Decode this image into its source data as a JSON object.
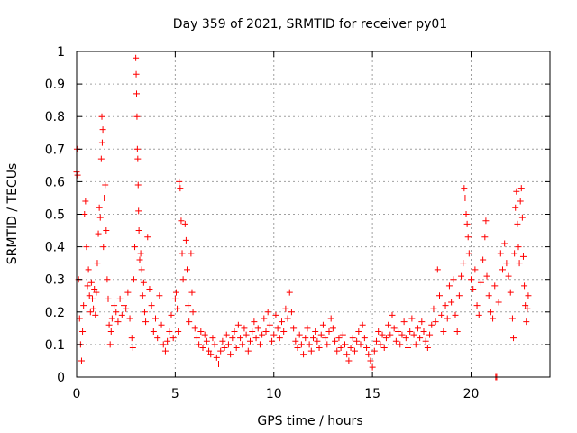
{
  "chart_data": {
    "type": "scatter",
    "title": "Day 359 of 2021, SRMTID for receiver py01",
    "xlabel": "GPS time / hours",
    "ylabel": "SRMTID / TECUs",
    "xlim": [
      0,
      24
    ],
    "ylim": [
      0,
      1
    ],
    "xticks": [
      0,
      5,
      10,
      15,
      20
    ],
    "xtick_labels": [
      "0",
      "5",
      "10",
      "15",
      "20"
    ],
    "yticks": [
      0,
      0.1,
      0.2,
      0.3,
      0.4,
      0.5,
      0.6,
      0.7,
      0.8,
      0.9,
      1
    ],
    "ytick_labels": [
      "0",
      "0.1",
      "0.2",
      "0.3",
      "0.4",
      "0.5",
      "0.6",
      "0.7",
      "0.8",
      "0.9",
      "1"
    ],
    "grid": true,
    "marker": "+",
    "color": "#ff0000",
    "series": [
      {
        "name": "SRMTID",
        "points": [
          [
            0.0,
            0.63
          ],
          [
            0.02,
            0.7
          ],
          [
            0.05,
            0.62
          ],
          [
            0.1,
            0.3
          ],
          [
            0.15,
            0.18
          ],
          [
            0.2,
            0.1
          ],
          [
            0.25,
            0.05
          ],
          [
            0.3,
            0.14
          ],
          [
            0.35,
            0.22
          ],
          [
            0.4,
            0.5
          ],
          [
            0.45,
            0.54
          ],
          [
            0.5,
            0.4
          ],
          [
            0.55,
            0.28
          ],
          [
            0.6,
            0.33
          ],
          [
            0.65,
            0.25
          ],
          [
            0.7,
            0.2
          ],
          [
            0.75,
            0.29
          ],
          [
            0.8,
            0.24
          ],
          [
            0.85,
            0.21
          ],
          [
            0.9,
            0.27
          ],
          [
            0.95,
            0.19
          ],
          [
            1.0,
            0.26
          ],
          [
            1.05,
            0.35
          ],
          [
            1.1,
            0.44
          ],
          [
            1.15,
            0.52
          ],
          [
            1.2,
            0.49
          ],
          [
            1.25,
            0.67
          ],
          [
            1.28,
            0.8
          ],
          [
            1.3,
            0.72
          ],
          [
            1.33,
            0.76
          ],
          [
            1.36,
            0.4
          ],
          [
            1.4,
            0.55
          ],
          [
            1.45,
            0.59
          ],
          [
            1.5,
            0.45
          ],
          [
            1.55,
            0.3
          ],
          [
            1.6,
            0.24
          ],
          [
            1.65,
            0.16
          ],
          [
            1.7,
            0.1
          ],
          [
            1.75,
            0.14
          ],
          [
            1.8,
            0.18
          ],
          [
            1.9,
            0.22
          ],
          [
            2.0,
            0.2
          ],
          [
            2.1,
            0.17
          ],
          [
            2.2,
            0.24
          ],
          [
            2.3,
            0.19
          ],
          [
            2.4,
            0.22
          ],
          [
            2.5,
            0.21
          ],
          [
            2.6,
            0.26
          ],
          [
            2.7,
            0.18
          ],
          [
            2.8,
            0.12
          ],
          [
            2.85,
            0.09
          ],
          [
            2.9,
            0.3
          ],
          [
            2.95,
            0.4
          ],
          [
            3.0,
            0.98
          ],
          [
            3.02,
            0.93
          ],
          [
            3.04,
            0.87
          ],
          [
            3.06,
            0.8
          ],
          [
            3.08,
            0.7
          ],
          [
            3.1,
            0.67
          ],
          [
            3.12,
            0.59
          ],
          [
            3.14,
            0.51
          ],
          [
            3.16,
            0.45
          ],
          [
            3.2,
            0.36
          ],
          [
            3.25,
            0.38
          ],
          [
            3.3,
            0.33
          ],
          [
            3.35,
            0.25
          ],
          [
            3.4,
            0.29
          ],
          [
            3.45,
            0.2
          ],
          [
            3.5,
            0.17
          ],
          [
            3.6,
            0.43
          ],
          [
            3.7,
            0.27
          ],
          [
            3.8,
            0.22
          ],
          [
            3.9,
            0.14
          ],
          [
            4.0,
            0.18
          ],
          [
            4.1,
            0.12
          ],
          [
            4.2,
            0.25
          ],
          [
            4.3,
            0.16
          ],
          [
            4.4,
            0.1
          ],
          [
            4.5,
            0.08
          ],
          [
            4.6,
            0.11
          ],
          [
            4.7,
            0.14
          ],
          [
            4.8,
            0.19
          ],
          [
            4.9,
            0.12
          ],
          [
            5.0,
            0.24
          ],
          [
            5.05,
            0.26
          ],
          [
            5.1,
            0.21
          ],
          [
            5.15,
            0.14
          ],
          [
            5.2,
            0.6
          ],
          [
            5.25,
            0.58
          ],
          [
            5.3,
            0.48
          ],
          [
            5.35,
            0.38
          ],
          [
            5.4,
            0.3
          ],
          [
            5.5,
            0.47
          ],
          [
            5.55,
            0.42
          ],
          [
            5.6,
            0.33
          ],
          [
            5.65,
            0.22
          ],
          [
            5.7,
            0.17
          ],
          [
            5.8,
            0.38
          ],
          [
            5.85,
            0.26
          ],
          [
            5.9,
            0.2
          ],
          [
            6.0,
            0.15
          ],
          [
            6.1,
            0.12
          ],
          [
            6.2,
            0.1
          ],
          [
            6.3,
            0.14
          ],
          [
            6.4,
            0.09
          ],
          [
            6.5,
            0.13
          ],
          [
            6.6,
            0.11
          ],
          [
            6.7,
            0.08
          ],
          [
            6.8,
            0.07
          ],
          [
            6.9,
            0.12
          ],
          [
            7.0,
            0.1
          ],
          [
            7.1,
            0.06
          ],
          [
            7.2,
            0.04
          ],
          [
            7.3,
            0.08
          ],
          [
            7.4,
            0.11
          ],
          [
            7.5,
            0.09
          ],
          [
            7.6,
            0.13
          ],
          [
            7.7,
            0.1
          ],
          [
            7.8,
            0.07
          ],
          [
            7.9,
            0.12
          ],
          [
            8.0,
            0.14
          ],
          [
            8.1,
            0.09
          ],
          [
            8.2,
            0.16
          ],
          [
            8.3,
            0.12
          ],
          [
            8.4,
            0.1
          ],
          [
            8.5,
            0.15
          ],
          [
            8.6,
            0.13
          ],
          [
            8.7,
            0.08
          ],
          [
            8.8,
            0.11
          ],
          [
            8.9,
            0.14
          ],
          [
            9.0,
            0.17
          ],
          [
            9.1,
            0.12
          ],
          [
            9.2,
            0.15
          ],
          [
            9.3,
            0.1
          ],
          [
            9.4,
            0.13
          ],
          [
            9.5,
            0.18
          ],
          [
            9.6,
            0.14
          ],
          [
            9.7,
            0.2
          ],
          [
            9.8,
            0.16
          ],
          [
            9.9,
            0.11
          ],
          [
            10.0,
            0.13
          ],
          [
            10.1,
            0.19
          ],
          [
            10.2,
            0.15
          ],
          [
            10.3,
            0.12
          ],
          [
            10.4,
            0.17
          ],
          [
            10.5,
            0.14
          ],
          [
            10.6,
            0.21
          ],
          [
            10.7,
            0.18
          ],
          [
            10.8,
            0.26
          ],
          [
            10.9,
            0.2
          ],
          [
            11.0,
            0.15
          ],
          [
            11.1,
            0.11
          ],
          [
            11.2,
            0.09
          ],
          [
            11.3,
            0.13
          ],
          [
            11.4,
            0.1
          ],
          [
            11.5,
            0.07
          ],
          [
            11.6,
            0.12
          ],
          [
            11.7,
            0.15
          ],
          [
            11.8,
            0.1
          ],
          [
            11.9,
            0.08
          ],
          [
            12.0,
            0.12
          ],
          [
            12.1,
            0.14
          ],
          [
            12.2,
            0.11
          ],
          [
            12.3,
            0.09
          ],
          [
            12.4,
            0.13
          ],
          [
            12.5,
            0.16
          ],
          [
            12.6,
            0.12
          ],
          [
            12.7,
            0.1
          ],
          [
            12.8,
            0.14
          ],
          [
            12.9,
            0.18
          ],
          [
            13.0,
            0.15
          ],
          [
            13.1,
            0.11
          ],
          [
            13.2,
            0.08
          ],
          [
            13.3,
            0.12
          ],
          [
            13.4,
            0.09
          ],
          [
            13.5,
            0.13
          ],
          [
            13.6,
            0.1
          ],
          [
            13.7,
            0.07
          ],
          [
            13.8,
            0.05
          ],
          [
            13.9,
            0.09
          ],
          [
            14.0,
            0.12
          ],
          [
            14.1,
            0.08
          ],
          [
            14.2,
            0.11
          ],
          [
            14.3,
            0.14
          ],
          [
            14.4,
            0.1
          ],
          [
            14.5,
            0.16
          ],
          [
            14.6,
            0.12
          ],
          [
            14.7,
            0.09
          ],
          [
            14.8,
            0.07
          ],
          [
            14.9,
            0.05
          ],
          [
            15.0,
            0.03
          ],
          [
            15.1,
            0.08
          ],
          [
            15.2,
            0.11
          ],
          [
            15.3,
            0.14
          ],
          [
            15.4,
            0.1
          ],
          [
            15.5,
            0.13
          ],
          [
            15.6,
            0.09
          ],
          [
            15.7,
            0.12
          ],
          [
            15.8,
            0.16
          ],
          [
            15.9,
            0.13
          ],
          [
            16.0,
            0.19
          ],
          [
            16.1,
            0.15
          ],
          [
            16.2,
            0.11
          ],
          [
            16.3,
            0.14
          ],
          [
            16.4,
            0.1
          ],
          [
            16.5,
            0.13
          ],
          [
            16.6,
            0.17
          ],
          [
            16.7,
            0.12
          ],
          [
            16.8,
            0.09
          ],
          [
            16.9,
            0.14
          ],
          [
            17.0,
            0.18
          ],
          [
            17.1,
            0.13
          ],
          [
            17.2,
            0.1
          ],
          [
            17.3,
            0.15
          ],
          [
            17.4,
            0.12
          ],
          [
            17.5,
            0.17
          ],
          [
            17.6,
            0.14
          ],
          [
            17.7,
            0.11
          ],
          [
            17.8,
            0.09
          ],
          [
            17.9,
            0.13
          ],
          [
            18.0,
            0.16
          ],
          [
            18.1,
            0.21
          ],
          [
            18.2,
            0.17
          ],
          [
            18.3,
            0.33
          ],
          [
            18.4,
            0.25
          ],
          [
            18.5,
            0.19
          ],
          [
            18.6,
            0.14
          ],
          [
            18.7,
            0.22
          ],
          [
            18.8,
            0.18
          ],
          [
            18.9,
            0.28
          ],
          [
            19.0,
            0.23
          ],
          [
            19.1,
            0.3
          ],
          [
            19.2,
            0.19
          ],
          [
            19.3,
            0.14
          ],
          [
            19.4,
            0.25
          ],
          [
            19.5,
            0.31
          ],
          [
            19.6,
            0.35
          ],
          [
            19.65,
            0.58
          ],
          [
            19.7,
            0.55
          ],
          [
            19.75,
            0.5
          ],
          [
            19.8,
            0.47
          ],
          [
            19.85,
            0.43
          ],
          [
            19.9,
            0.38
          ],
          [
            20.0,
            0.3
          ],
          [
            20.1,
            0.27
          ],
          [
            20.2,
            0.33
          ],
          [
            20.3,
            0.22
          ],
          [
            20.4,
            0.19
          ],
          [
            20.5,
            0.29
          ],
          [
            20.6,
            0.36
          ],
          [
            20.7,
            0.43
          ],
          [
            20.75,
            0.48
          ],
          [
            20.8,
            0.31
          ],
          [
            20.9,
            0.25
          ],
          [
            21.0,
            0.2
          ],
          [
            21.1,
            0.18
          ],
          [
            21.2,
            0.28
          ],
          [
            21.25,
            0.0
          ],
          [
            21.3,
            0.0
          ],
          [
            21.4,
            0.23
          ],
          [
            21.5,
            0.38
          ],
          [
            21.6,
            0.33
          ],
          [
            21.7,
            0.41
          ],
          [
            21.8,
            0.35
          ],
          [
            21.9,
            0.31
          ],
          [
            22.0,
            0.26
          ],
          [
            22.1,
            0.18
          ],
          [
            22.15,
            0.12
          ],
          [
            22.2,
            0.38
          ],
          [
            22.25,
            0.52
          ],
          [
            22.3,
            0.57
          ],
          [
            22.35,
            0.47
          ],
          [
            22.4,
            0.4
          ],
          [
            22.45,
            0.35
          ],
          [
            22.5,
            0.54
          ],
          [
            22.55,
            0.58
          ],
          [
            22.6,
            0.49
          ],
          [
            22.65,
            0.37
          ],
          [
            22.7,
            0.28
          ],
          [
            22.75,
            0.22
          ],
          [
            22.8,
            0.17
          ],
          [
            22.85,
            0.21
          ],
          [
            22.9,
            0.25
          ]
        ]
      }
    ]
  }
}
